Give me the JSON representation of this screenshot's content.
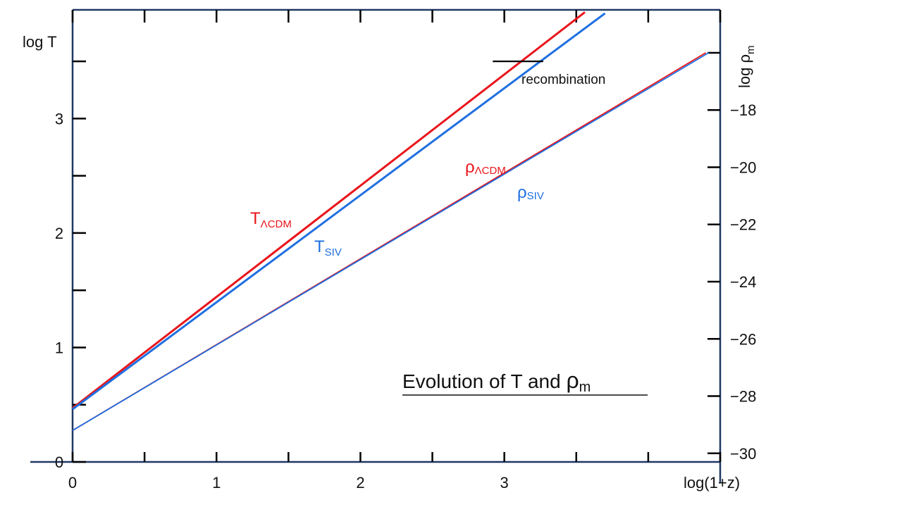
{
  "chart_data": {
    "type": "line",
    "title": "Evolution of  T  and  ",
    "title_sub": "m",
    "title_greek": "ρ",
    "xlabel": "log(1+z)",
    "ylabel_left": "log T",
    "ylabel_right_base": "log ρ",
    "ylabel_right_sub": "m",
    "xlim": [
      0,
      4.5
    ],
    "ylim_left": [
      0,
      3.95
    ],
    "ylim_right": [
      -30.3,
      -14.5
    ],
    "x_ticks": [
      0,
      0.5,
      1,
      1.5,
      2,
      2.5,
      3,
      3.5,
      4,
      4.5
    ],
    "x_tick_labels": [
      "0",
      "1",
      "2",
      "3"
    ],
    "x_tick_label_values": [
      0,
      1,
      2,
      3
    ],
    "y_left_ticks": [
      0,
      0.5,
      1,
      1.5,
      2,
      2.5,
      3,
      3.5
    ],
    "y_left_tick_labels": [
      "0",
      "1",
      "2",
      "3"
    ],
    "y_left_tick_label_values": [
      0,
      1,
      2,
      3
    ],
    "y_right_ticks": [
      -30,
      -28,
      -26,
      -24,
      -22,
      -20,
      -18,
      -16
    ],
    "y_right_tick_labels": [
      "−30",
      "−28",
      "−26",
      "−24",
      "−22",
      "−20",
      "−18"
    ],
    "y_right_tick_label_values": [
      -30,
      -28,
      -26,
      -24,
      -22,
      -20,
      -18
    ],
    "colors": {
      "lcdm": "#e8151b",
      "siv": "#1f6fe0",
      "axis": "#1f3864"
    },
    "series": [
      {
        "key": "T_lcdm",
        "axis": "left",
        "base": "T",
        "sub": "ΛCDM",
        "color": "#e8151b",
        "x": [
          0,
          3.56
        ],
        "y": [
          0.47,
          3.93
        ]
      },
      {
        "key": "T_siv",
        "axis": "left",
        "base": "T",
        "sub": "SIV",
        "color": "#1f6fe0",
        "x": [
          0,
          3.7
        ],
        "y": [
          0.46,
          3.92
        ]
      },
      {
        "key": "rho_lcdm",
        "axis": "right",
        "base": "ρ",
        "sub": "ΛCDM",
        "color": "#e8151b",
        "x": [
          0,
          4.4
        ],
        "y": [
          -29.2,
          -16.0
        ]
      },
      {
        "key": "rho_siv",
        "axis": "right",
        "base": "ρ",
        "sub": "SIV",
        "color": "#1f6fe0",
        "x": [
          0,
          4.42
        ],
        "y": [
          -29.2,
          -16.0
        ]
      }
    ],
    "annotation": {
      "text": "recombination",
      "x_range": [
        2.92,
        3.27
      ],
      "y": 3.5
    },
    "grid": false
  }
}
